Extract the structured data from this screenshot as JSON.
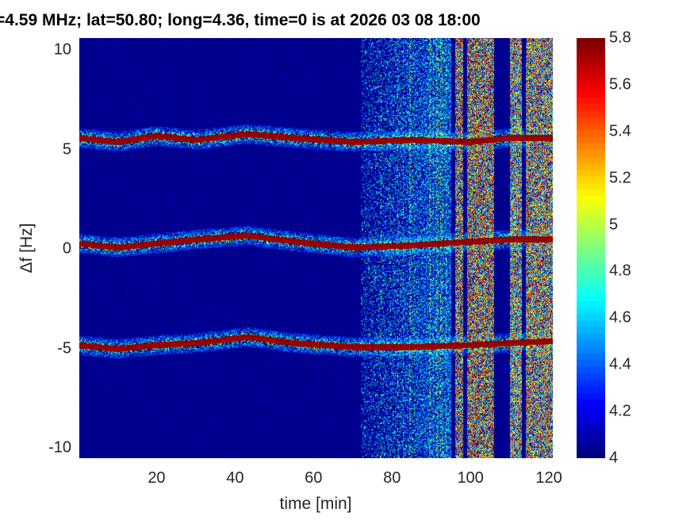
{
  "chart_data": {
    "type": "heatmap",
    "title": "=4.59 MHz;  lat=50.80; long=4.36, time=0 is at 2026 03 08 18:00",
    "xlabel": "time [min]",
    "ylabel": "Δf [Hz]",
    "xlim": [
      0.3,
      121
    ],
    "ylim": [
      -10.5,
      10.6
    ],
    "xticks": [
      "20",
      "40",
      "60",
      "80",
      "100",
      "120"
    ],
    "xtick_values": [
      20,
      40,
      60,
      80,
      100,
      120
    ],
    "yticks": [
      "10",
      "5",
      "0",
      "-5",
      "-10"
    ],
    "ytick_values": [
      10,
      5,
      0,
      -5,
      -10
    ],
    "colorbar": {
      "clim": [
        4,
        5.8
      ],
      "ticks": [
        "5.8",
        "5.6",
        "5.4",
        "5.2",
        "5",
        "4.8",
        "4.6",
        "4.4",
        "4.2",
        "4"
      ],
      "tick_values": [
        5.8,
        5.6,
        5.4,
        5.2,
        5,
        4.8,
        4.6,
        4.4,
        4.2,
        4
      ],
      "colormap": "jet"
    },
    "traces": [
      {
        "x": [
          0,
          10,
          20,
          30,
          43,
          55,
          70,
          85,
          100,
          110,
          121
        ],
        "y": [
          5.6,
          5.4,
          5.7,
          5.5,
          5.8,
          5.6,
          5.4,
          5.5,
          5.4,
          5.6,
          5.6
        ]
      },
      {
        "x": [
          0,
          10,
          20,
          30,
          43,
          55,
          70,
          85,
          100,
          110,
          121
        ],
        "y": [
          0.3,
          0.1,
          0.3,
          0.5,
          0.7,
          0.4,
          0.1,
          0.2,
          0.4,
          0.5,
          0.5
        ]
      },
      {
        "x": [
          0,
          10,
          20,
          30,
          43,
          55,
          70,
          85,
          100,
          110,
          121
        ],
        "y": [
          -4.8,
          -5.0,
          -4.8,
          -4.7,
          -4.4,
          -4.7,
          -4.9,
          -4.9,
          -4.8,
          -4.7,
          -4.6
        ]
      }
    ],
    "noise_bands": [
      {
        "x": [
          72,
          95
        ],
        "level": 4.7
      },
      {
        "x": [
          96,
          98
        ],
        "level": 5.5
      },
      {
        "x": [
          99,
          106
        ],
        "level": 5.5
      },
      {
        "x": [
          110,
          113
        ],
        "level": 5.3
      },
      {
        "x": [
          114,
          121
        ],
        "level": 5.4
      }
    ],
    "grid": false
  }
}
